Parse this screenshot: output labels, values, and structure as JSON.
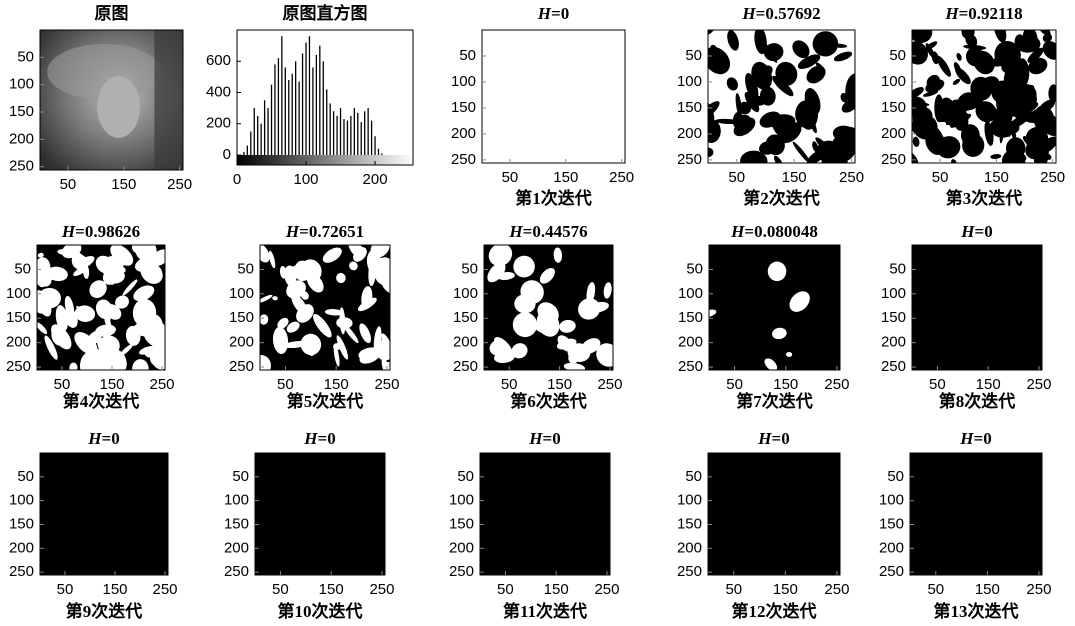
{
  "image_axes": {
    "xlim": [
      0,
      256
    ],
    "ylim": [
      0,
      256
    ],
    "xticks": [
      50,
      150,
      250
    ],
    "yticks": [
      50,
      100,
      150,
      200,
      250
    ]
  },
  "panels": [
    {
      "kind": "photo",
      "title": "原图"
    },
    {
      "kind": "histogram",
      "title": "原图直方图",
      "x": [
        10,
        15,
        20,
        25,
        30,
        35,
        40,
        45,
        50,
        55,
        60,
        65,
        70,
        75,
        80,
        85,
        90,
        95,
        100,
        105,
        110,
        115,
        120,
        125,
        130,
        135,
        140,
        145,
        150,
        155,
        160,
        165,
        170,
        175,
        180,
        185,
        190,
        195,
        200,
        205,
        210
      ],
      "values": [
        20,
        60,
        150,
        300,
        250,
        200,
        350,
        300,
        450,
        580,
        620,
        760,
        560,
        480,
        520,
        600,
        470,
        650,
        720,
        760,
        560,
        640,
        700,
        600,
        420,
        330,
        280,
        250,
        300,
        230,
        220,
        250,
        300,
        270,
        210,
        280,
        300,
        220,
        120,
        40,
        10
      ],
      "xlim": [
        0,
        255
      ],
      "ylim": [
        -64,
        800
      ],
      "xticks": [
        0,
        100,
        200
      ],
      "yticks": [
        0,
        200,
        400,
        600
      ],
      "color": "#000000"
    },
    {
      "kind": "binary",
      "title": [
        "H",
        "=0"
      ],
      "caption": "第1次迭代",
      "background": "#ffffff",
      "foreground": "#000000"
    },
    {
      "kind": "binary",
      "title": [
        "H",
        "=0.57692"
      ],
      "caption": "第2次迭代",
      "background": "#ffffff",
      "foreground": "#000000"
    },
    {
      "kind": "binary",
      "title": [
        "H",
        "=0.92118"
      ],
      "caption": "第3次迭代",
      "background": "#ffffff",
      "foreground": "#000000"
    },
    {
      "kind": "binary",
      "title": [
        "H",
        "=0.98626"
      ],
      "caption": "第4次迭代",
      "background": "#000000",
      "foreground": "#ffffff"
    },
    {
      "kind": "binary",
      "title": [
        "H",
        "=0.72651"
      ],
      "caption": "第5次迭代",
      "background": "#000000",
      "foreground": "#ffffff"
    },
    {
      "kind": "binary",
      "title": [
        "H",
        "=0.44576"
      ],
      "caption": "第6次迭代",
      "background": "#000000",
      "foreground": "#ffffff"
    },
    {
      "kind": "binary",
      "title": [
        "H",
        "=0.080048"
      ],
      "caption": "第7次迭代",
      "background": "#000000",
      "foreground": "#ffffff"
    },
    {
      "kind": "binary",
      "title": [
        "H",
        "=0"
      ],
      "caption": "第8次迭代",
      "background": "#000000",
      "foreground": "#ffffff"
    },
    {
      "kind": "binary",
      "title": [
        "H",
        "=0"
      ],
      "caption": "第9次迭代",
      "background": "#000000",
      "foreground": "#ffffff"
    },
    {
      "kind": "binary",
      "title": [
        "H",
        "=0"
      ],
      "caption": "第10次迭代",
      "background": "#000000",
      "foreground": "#ffffff"
    },
    {
      "kind": "binary",
      "title": [
        "H",
        "=0"
      ],
      "caption": "第11次迭代",
      "background": "#000000",
      "foreground": "#ffffff"
    },
    {
      "kind": "binary",
      "title": [
        "H",
        "=0"
      ],
      "caption": "第12次迭代",
      "background": "#000000",
      "foreground": "#ffffff"
    },
    {
      "kind": "binary",
      "title": [
        "H",
        "=0"
      ],
      "caption": "第13次迭代",
      "background": "#000000",
      "foreground": "#ffffff"
    }
  ]
}
